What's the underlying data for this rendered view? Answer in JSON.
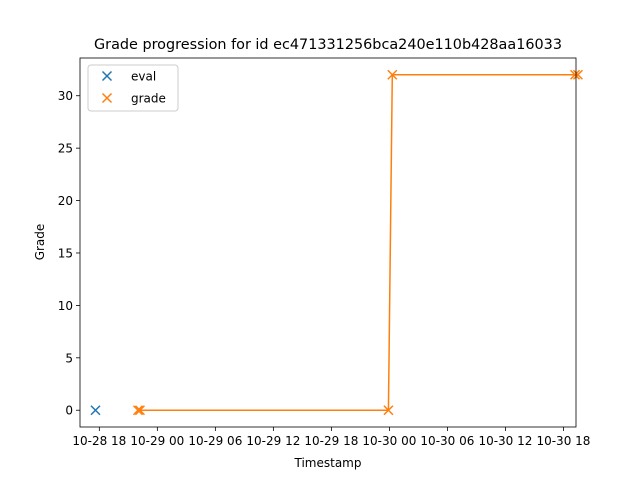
{
  "chart_data": {
    "type": "scatter",
    "title": "Grade progression for id ec471331256bca240e110b428aa16033",
    "xlabel": "Timestamp",
    "ylabel": "Grade",
    "x_unit": "hours since 10-28 00:00",
    "xlim": [
      16.0,
      67.3
    ],
    "ylim": [
      -1.6,
      33.6
    ],
    "x_ticks": [
      {
        "value": 18,
        "label": "10-28 18"
      },
      {
        "value": 24,
        "label": "10-29 00"
      },
      {
        "value": 30,
        "label": "10-29 06"
      },
      {
        "value": 36,
        "label": "10-29 12"
      },
      {
        "value": 42,
        "label": "10-29 18"
      },
      {
        "value": 48,
        "label": "10-30 00"
      },
      {
        "value": 54,
        "label": "10-30 06"
      },
      {
        "value": 60,
        "label": "10-30 12"
      },
      {
        "value": 66,
        "label": "10-30 18"
      }
    ],
    "y_ticks": [
      {
        "value": 0,
        "label": "0"
      },
      {
        "value": 5,
        "label": "5"
      },
      {
        "value": 10,
        "label": "10"
      },
      {
        "value": 15,
        "label": "15"
      },
      {
        "value": 20,
        "label": "20"
      },
      {
        "value": 25,
        "label": "25"
      },
      {
        "value": 30,
        "label": "30"
      }
    ],
    "legend": {
      "position": "top-left"
    },
    "series": [
      {
        "name": "eval",
        "color": "#1f77b4",
        "marker": "x",
        "line": false,
        "points": [
          {
            "x": 17.6,
            "y": 0
          }
        ]
      },
      {
        "name": "grade",
        "color": "#ff7f0e",
        "marker": "x",
        "line": true,
        "points": [
          {
            "x": 22.0,
            "y": 0
          },
          {
            "x": 22.2,
            "y": 0
          },
          {
            "x": 47.9,
            "y": 0
          },
          {
            "x": 48.3,
            "y": 32
          },
          {
            "x": 67.2,
            "y": 32
          },
          {
            "x": 67.5,
            "y": 32
          }
        ]
      }
    ]
  }
}
